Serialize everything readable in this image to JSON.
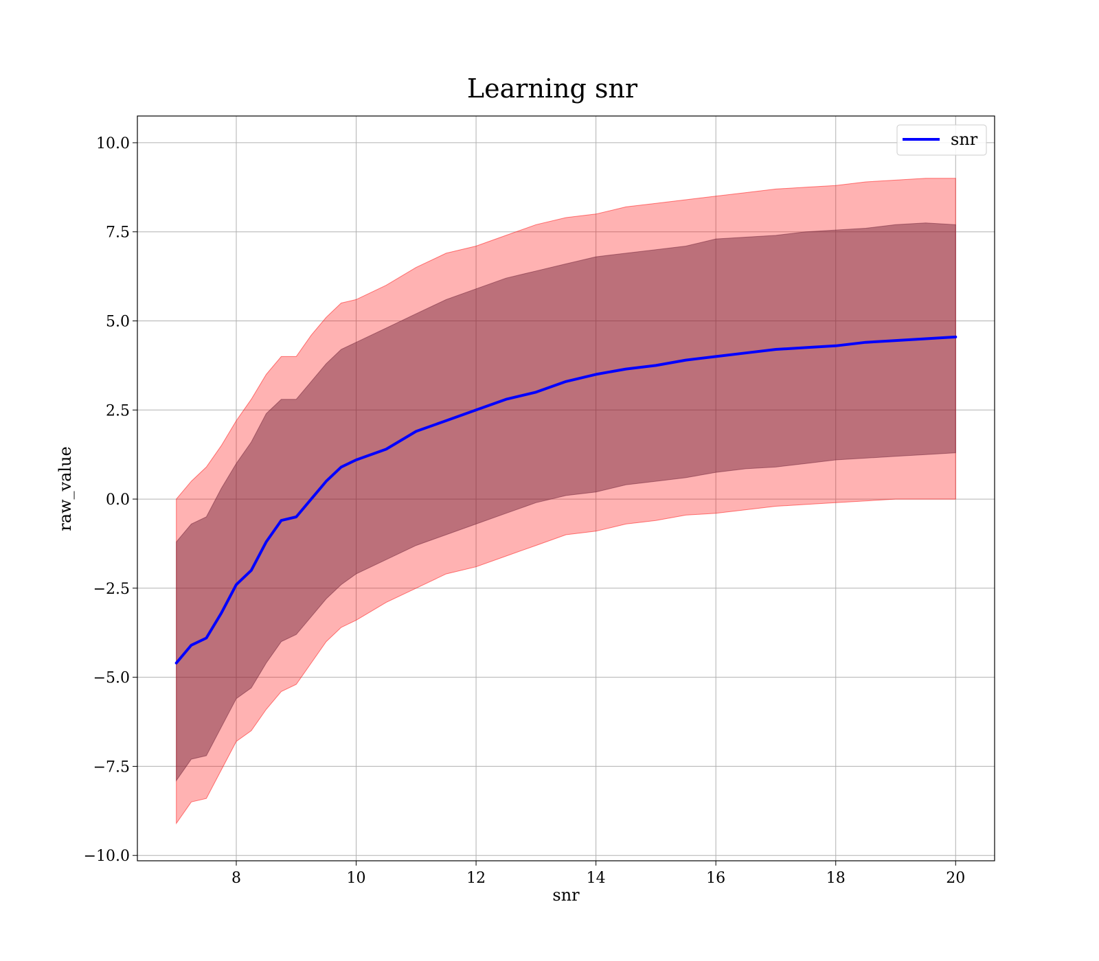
{
  "chart_data": {
    "type": "line",
    "title": "Learning snr",
    "xlabel": "snr",
    "ylabel": "raw_value",
    "xlim": [
      6.35,
      20.65
    ],
    "ylim": [
      -10.15,
      10.75
    ],
    "xticks": [
      8,
      10,
      12,
      14,
      16,
      18,
      20
    ],
    "yticks": [
      10.0,
      7.5,
      5.0,
      2.5,
      0.0,
      -2.5,
      -5.0,
      -7.5,
      -10.0
    ],
    "ytick_labels": [
      "10.0",
      "7.5",
      "5.0",
      "2.5",
      "0.0",
      "−2.5",
      "−5.0",
      "−7.5",
      "−10.0"
    ],
    "grid": true,
    "legend": {
      "position": "top-right",
      "entries": [
        {
          "name": "snr",
          "color": "#0000ff"
        }
      ]
    },
    "series": [
      {
        "name": "snr",
        "color": "#0000ff",
        "x": [
          7.0,
          7.25,
          7.5,
          7.75,
          8.0,
          8.25,
          8.5,
          8.75,
          9.0,
          9.25,
          9.5,
          9.75,
          10.0,
          10.5,
          11.0,
          11.5,
          12.0,
          12.5,
          13.0,
          13.5,
          14.0,
          14.5,
          15.0,
          15.5,
          16.0,
          16.5,
          17.0,
          17.5,
          18.0,
          18.5,
          19.0,
          19.5,
          20.0
        ],
        "y": [
          -4.6,
          -4.1,
          -3.9,
          -3.2,
          -2.4,
          -2.0,
          -1.2,
          -0.6,
          -0.5,
          0.0,
          0.5,
          0.9,
          1.1,
          1.4,
          1.9,
          2.2,
          2.5,
          2.8,
          3.0,
          3.3,
          3.5,
          3.65,
          3.75,
          3.9,
          4.0,
          4.1,
          4.2,
          4.25,
          4.3,
          4.4,
          4.45,
          4.5,
          4.55
        ]
      }
    ],
    "bands": [
      {
        "color": "#ff0000",
        "opacity": 0.3,
        "x": [
          7.0,
          7.25,
          7.5,
          7.75,
          8.0,
          8.25,
          8.5,
          8.75,
          9.0,
          9.25,
          9.5,
          9.75,
          10.0,
          10.5,
          11.0,
          11.5,
          12.0,
          12.5,
          13.0,
          13.5,
          14.0,
          14.5,
          15.0,
          15.5,
          16.0,
          16.5,
          17.0,
          17.5,
          18.0,
          18.5,
          19.0,
          19.5,
          20.0
        ],
        "upper": [
          0.0,
          0.5,
          0.9,
          1.5,
          2.2,
          2.8,
          3.5,
          4.0,
          4.0,
          4.6,
          5.1,
          5.5,
          5.6,
          6.0,
          6.5,
          6.9,
          7.1,
          7.4,
          7.7,
          7.9,
          8.0,
          8.2,
          8.3,
          8.4,
          8.5,
          8.6,
          8.7,
          8.75,
          8.8,
          8.9,
          8.95,
          9.0,
          9.0
        ],
        "lower": [
          -9.1,
          -8.5,
          -8.4,
          -7.6,
          -6.8,
          -6.5,
          -5.9,
          -5.4,
          -5.2,
          -4.6,
          -4.0,
          -3.6,
          -3.4,
          -2.9,
          -2.5,
          -2.1,
          -1.9,
          -1.6,
          -1.3,
          -1.0,
          -0.9,
          -0.7,
          -0.6,
          -0.45,
          -0.4,
          -0.3,
          -0.2,
          -0.15,
          -0.1,
          -0.05,
          0.0,
          0.0,
          0.0
        ]
      },
      {
        "color": "#6b2035",
        "opacity": 0.45,
        "x": [
          7.0,
          7.25,
          7.5,
          7.75,
          8.0,
          8.25,
          8.5,
          8.75,
          9.0,
          9.25,
          9.5,
          9.75,
          10.0,
          10.5,
          11.0,
          11.5,
          12.0,
          12.5,
          13.0,
          13.5,
          14.0,
          14.5,
          15.0,
          15.5,
          16.0,
          16.5,
          17.0,
          17.5,
          18.0,
          18.5,
          19.0,
          19.5,
          20.0
        ],
        "upper": [
          -1.2,
          -0.7,
          -0.5,
          0.3,
          1.0,
          1.6,
          2.4,
          2.8,
          2.8,
          3.3,
          3.8,
          4.2,
          4.4,
          4.8,
          5.2,
          5.6,
          5.9,
          6.2,
          6.4,
          6.6,
          6.8,
          6.9,
          7.0,
          7.1,
          7.3,
          7.35,
          7.4,
          7.5,
          7.55,
          7.6,
          7.7,
          7.75,
          7.7
        ],
        "lower": [
          -7.9,
          -7.3,
          -7.2,
          -6.4,
          -5.6,
          -5.3,
          -4.6,
          -4.0,
          -3.8,
          -3.3,
          -2.8,
          -2.4,
          -2.1,
          -1.7,
          -1.3,
          -1.0,
          -0.7,
          -0.4,
          -0.1,
          0.1,
          0.2,
          0.4,
          0.5,
          0.6,
          0.75,
          0.85,
          0.9,
          1.0,
          1.1,
          1.15,
          1.2,
          1.25,
          1.3
        ]
      }
    ]
  }
}
